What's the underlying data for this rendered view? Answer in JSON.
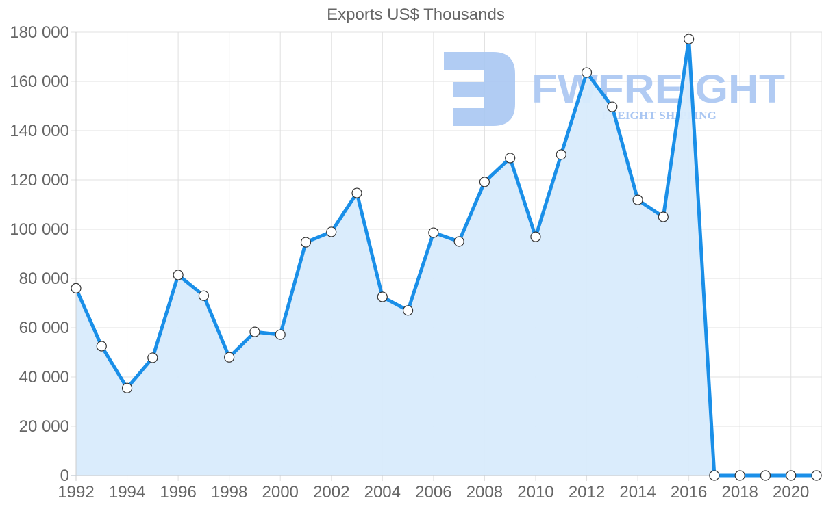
{
  "chart_data": {
    "type": "area",
    "title": "Exports US$ Thousands",
    "xlabel": "",
    "ylabel": "",
    "x": [
      1992,
      1993,
      1994,
      1995,
      1996,
      1997,
      1998,
      1999,
      2000,
      2001,
      2002,
      2003,
      2004,
      2005,
      2006,
      2007,
      2008,
      2009,
      2010,
      2011,
      2012,
      2013,
      2014,
      2015,
      2016,
      2017,
      2018,
      2019,
      2020,
      2021
    ],
    "series": [
      {
        "name": "Exports US$ Thousands",
        "values": [
          76000,
          52500,
          35500,
          47800,
          81400,
          73000,
          48000,
          58300,
          57200,
          94700,
          98900,
          114700,
          72500,
          67000,
          98600,
          95000,
          119200,
          128900,
          96900,
          130300,
          163600,
          149700,
          111900,
          105000,
          177200,
          0,
          0,
          0,
          0,
          0
        ]
      }
    ],
    "ylim": [
      0,
      180000
    ],
    "xlim": [
      1992,
      2021
    ],
    "yticks": [
      "0",
      "20 000",
      "40 000",
      "60 000",
      "80 000",
      "100 000",
      "120 000",
      "140 000",
      "160 000",
      "180 000"
    ],
    "xticks": [
      "1992",
      "1994",
      "1996",
      "1998",
      "2000",
      "2002",
      "2004",
      "2006",
      "2008",
      "2010",
      "2012",
      "2014",
      "2016",
      "2018",
      "2020"
    ],
    "grid": true,
    "legend": "none",
    "colors": {
      "line": "#1a8fe8",
      "fill": "#d8ebfc",
      "marker_fill": "#ffffff",
      "marker_stroke": "#333333",
      "grid": "#e0e0e0",
      "text": "#666666"
    }
  },
  "watermark": {
    "brand": "FWFREIGHT",
    "tagline": "FREIGHT SHIPPING"
  }
}
